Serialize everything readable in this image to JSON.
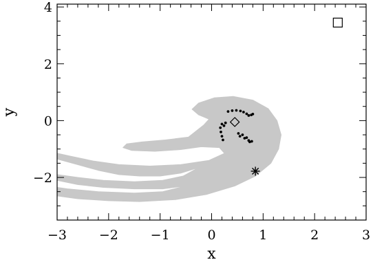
{
  "chart_data": {
    "type": "scatter",
    "title": "",
    "xlabel": "x",
    "ylabel": "y",
    "xlim": [
      -3,
      3
    ],
    "ylim": [
      -3.5,
      4.1
    ],
    "xticks": [
      -3,
      -2,
      -1,
      0,
      1,
      2,
      3
    ],
    "yticks": [
      -2,
      0,
      2,
      4
    ],
    "xtick_labels": [
      "−3",
      "−2",
      "−1",
      "0",
      "1",
      "2",
      "3"
    ],
    "ytick_labels": [
      "−2",
      "0",
      "2",
      "4"
    ],
    "grid": false,
    "legend": "none",
    "colors": {
      "region_fill": "#c8c8c8",
      "points": "#000000",
      "axes": "#000000"
    },
    "region": {
      "name": "",
      "description_shape": "spiral region with trailing arms",
      "outline": [
        [
          -3.0,
          -1.35
        ],
        [
          -2.6,
          -1.55
        ],
        [
          -2.2,
          -1.75
        ],
        [
          -1.8,
          -1.9
        ],
        [
          -1.4,
          -1.95
        ],
        [
          -1.0,
          -1.95
        ],
        [
          -0.6,
          -1.85
        ],
        [
          -0.25,
          -1.65
        ],
        [
          -0.55,
          -1.95
        ],
        [
          -0.95,
          -2.1
        ],
        [
          -1.5,
          -2.15
        ],
        [
          -2.1,
          -2.1
        ],
        [
          -2.6,
          -2.0
        ],
        [
          -3.0,
          -1.9
        ],
        [
          -3.0,
          -2.1
        ],
        [
          -2.6,
          -2.25
        ],
        [
          -2.1,
          -2.35
        ],
        [
          -1.5,
          -2.4
        ],
        [
          -0.95,
          -2.4
        ],
        [
          -0.5,
          -2.3
        ],
        [
          -0.95,
          -2.5
        ],
        [
          -1.5,
          -2.55
        ],
        [
          -2.2,
          -2.5
        ],
        [
          -2.8,
          -2.4
        ],
        [
          -3.0,
          -2.35
        ],
        [
          -3.0,
          -2.65
        ],
        [
          -2.6,
          -2.75
        ],
        [
          -2.0,
          -2.82
        ],
        [
          -1.4,
          -2.85
        ],
        [
          -0.7,
          -2.78
        ],
        [
          -0.1,
          -2.6
        ],
        [
          0.45,
          -2.3
        ],
        [
          0.85,
          -1.95
        ],
        [
          1.15,
          -1.5
        ],
        [
          1.3,
          -1.0
        ],
        [
          1.35,
          -0.5
        ],
        [
          1.27,
          0.0
        ],
        [
          1.1,
          0.42
        ],
        [
          0.8,
          0.72
        ],
        [
          0.42,
          0.85
        ],
        [
          0.05,
          0.8
        ],
        [
          -0.25,
          0.62
        ],
        [
          -0.38,
          0.4
        ],
        [
          -0.25,
          0.2
        ],
        [
          -0.05,
          0.05
        ],
        [
          -0.15,
          -0.15
        ],
        [
          -0.45,
          -0.58
        ],
        [
          -0.9,
          -0.68
        ],
        [
          -1.35,
          -0.75
        ],
        [
          -1.65,
          -0.82
        ],
        [
          -1.72,
          -0.95
        ],
        [
          -1.55,
          -1.05
        ],
        [
          -1.1,
          -1.08
        ],
        [
          -0.6,
          -1.02
        ],
        [
          -0.2,
          -0.92
        ],
        [
          0.15,
          -0.95
        ],
        [
          0.25,
          -1.15
        ],
        [
          -0.05,
          -1.4
        ],
        [
          -0.6,
          -1.55
        ],
        [
          -1.2,
          -1.6
        ],
        [
          -1.8,
          -1.55
        ],
        [
          -2.3,
          -1.42
        ],
        [
          -2.75,
          -1.25
        ],
        [
          -3.0,
          -1.15
        ]
      ]
    },
    "series": [
      {
        "name": "",
        "marker": "dot",
        "points": [
          [
            0.32,
            0.32
          ],
          [
            0.4,
            0.35
          ],
          [
            0.48,
            0.36
          ],
          [
            0.56,
            0.34
          ],
          [
            0.62,
            0.3
          ],
          [
            0.68,
            0.24
          ],
          [
            0.72,
            0.18
          ],
          [
            0.77,
            0.2
          ],
          [
            0.8,
            0.23
          ],
          [
            0.2,
            -0.12
          ],
          [
            0.17,
            -0.25
          ],
          [
            0.18,
            -0.4
          ],
          [
            0.2,
            -0.55
          ],
          [
            0.22,
            -0.68
          ],
          [
            0.27,
            -0.08
          ],
          [
            0.24,
            -0.18
          ],
          [
            0.52,
            -0.45
          ],
          [
            0.6,
            -0.5
          ],
          [
            0.68,
            -0.6
          ],
          [
            0.72,
            -0.7
          ],
          [
            0.74,
            -0.75
          ],
          [
            0.78,
            -0.73
          ],
          [
            0.64,
            -0.62
          ],
          [
            0.55,
            -0.55
          ]
        ]
      },
      {
        "name": "",
        "marker": "diamond",
        "points": [
          [
            0.45,
            -0.05
          ]
        ]
      },
      {
        "name": "",
        "marker": "asterisk",
        "points": [
          [
            0.85,
            -1.78
          ]
        ]
      },
      {
        "name": "",
        "marker": "square",
        "points": [
          [
            2.45,
            3.45
          ]
        ]
      }
    ]
  }
}
